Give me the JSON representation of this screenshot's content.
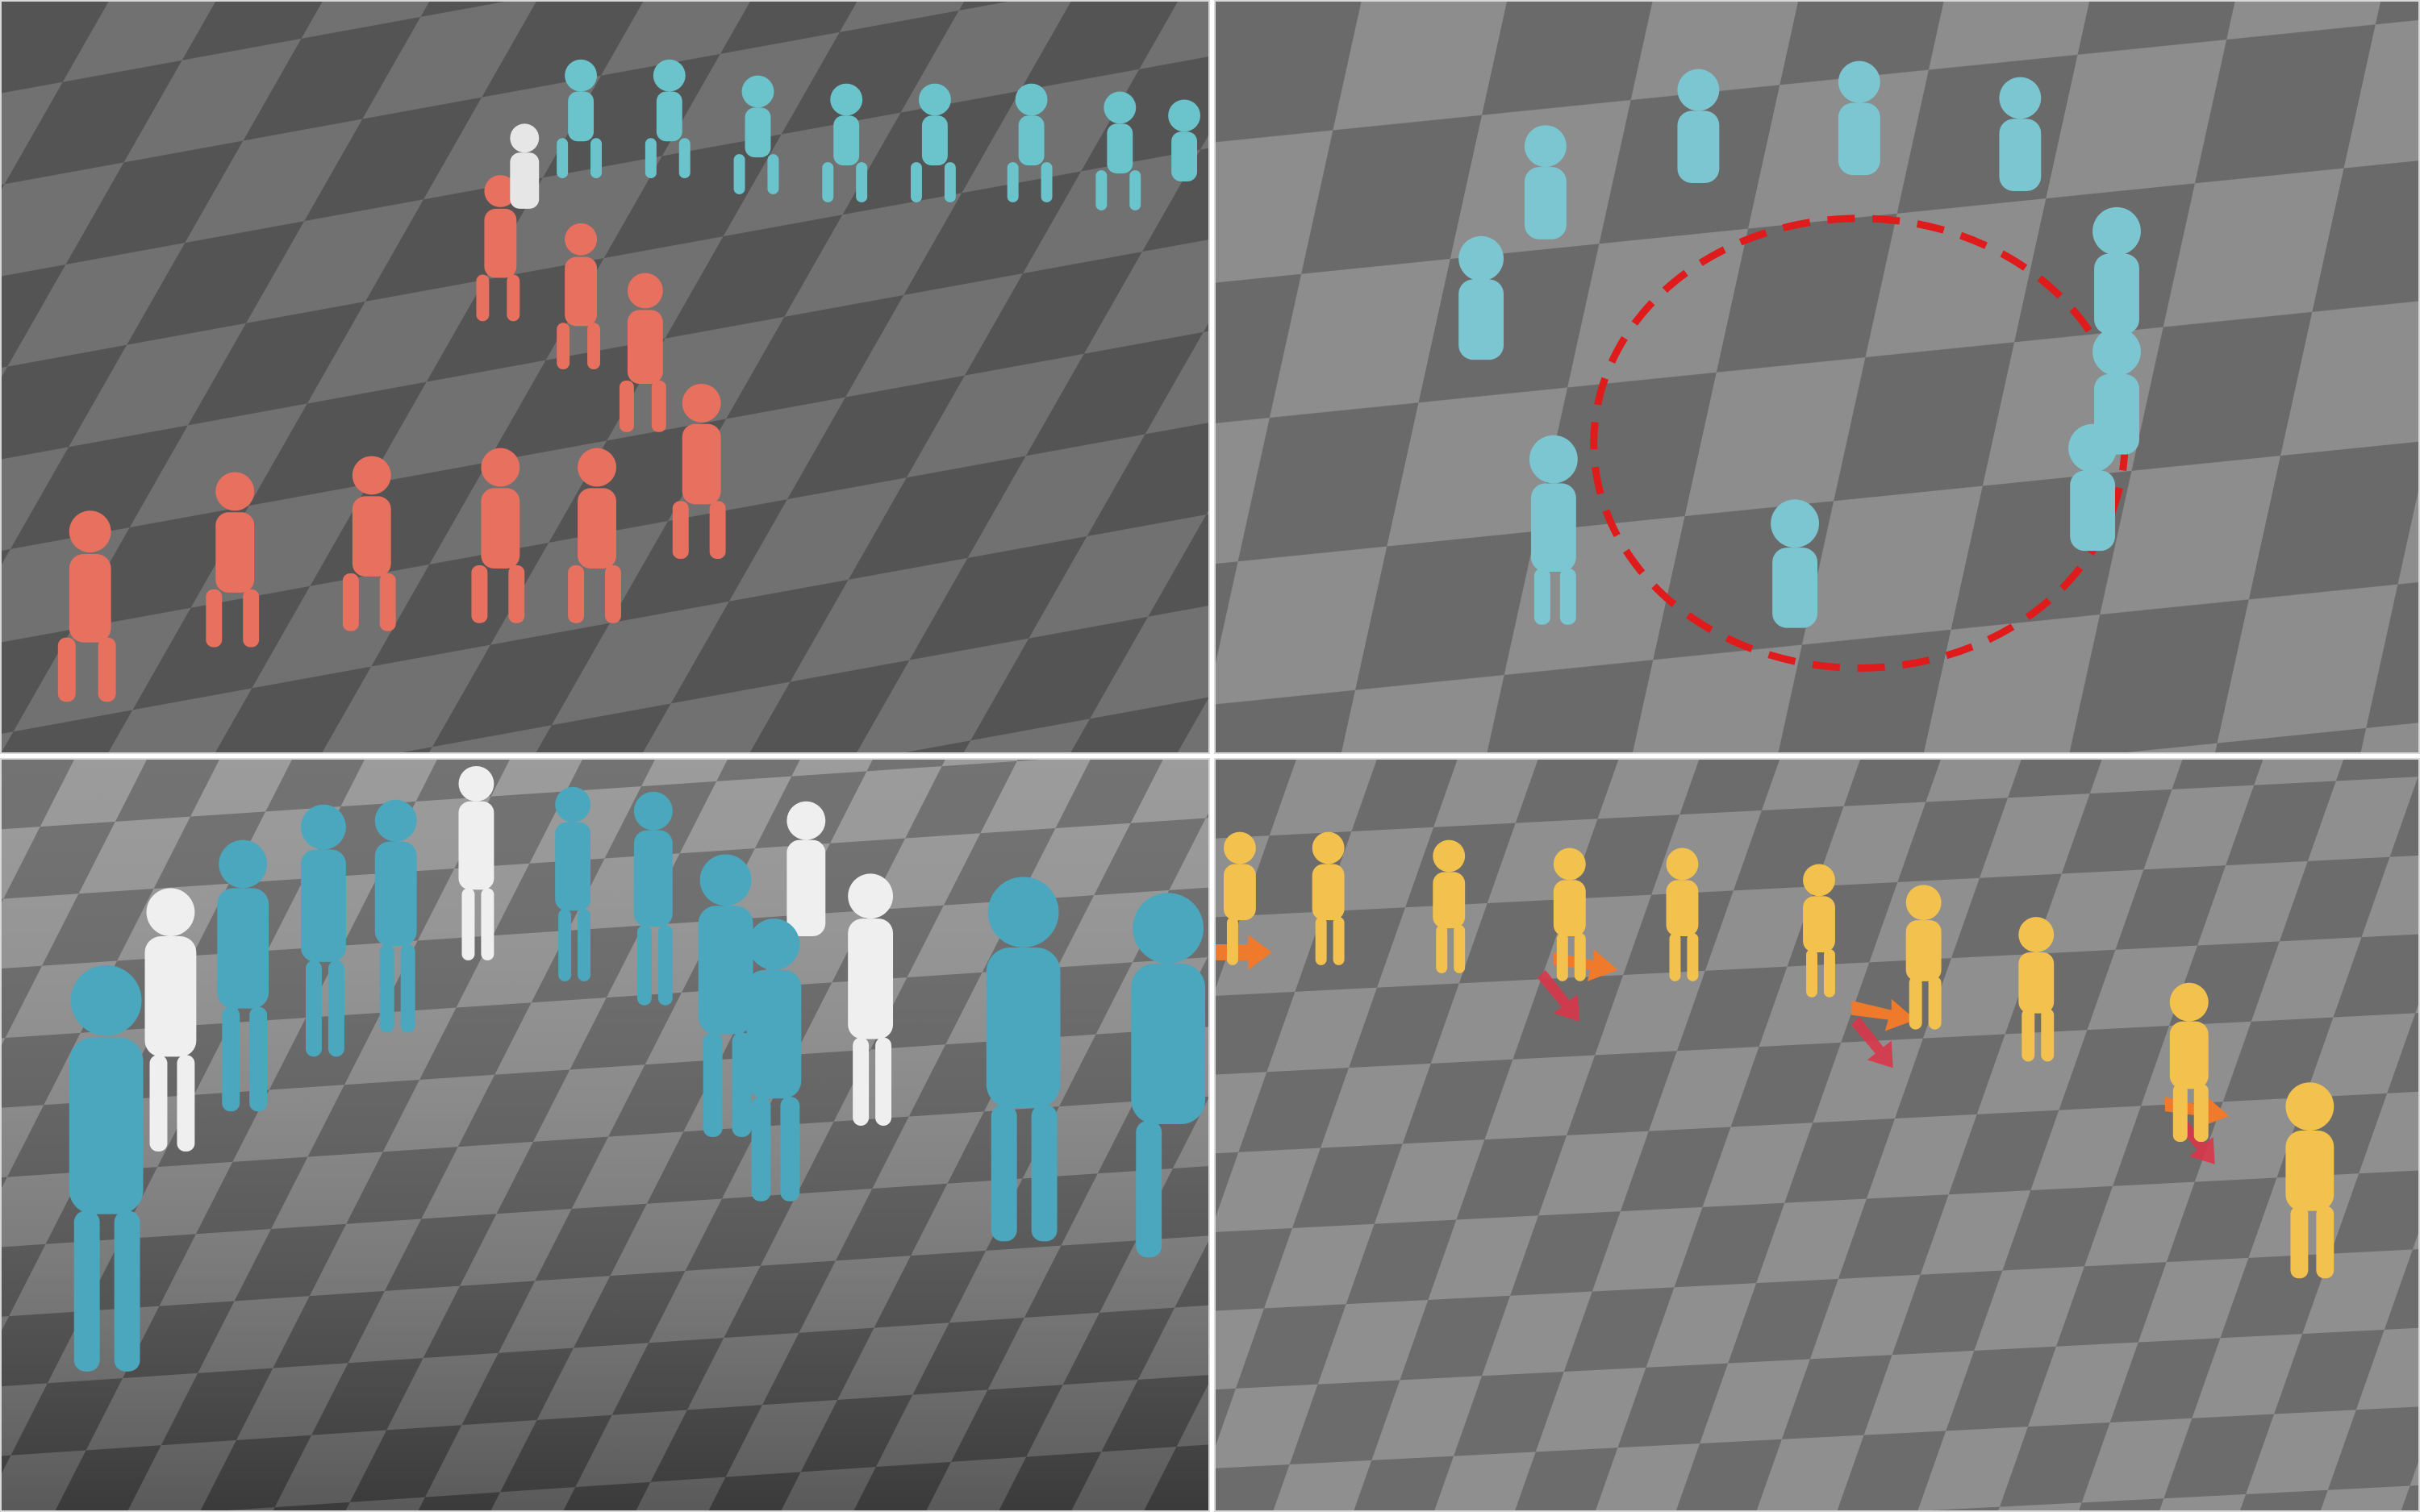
{
  "figure": {
    "panels": [
      {
        "name": "top-left",
        "subject": "red-and-cyan-character-sequences",
        "colors": {
          "primary": "#e8705e",
          "secondary": "#6bc3cc",
          "ghost": "#e6e6e6"
        }
      },
      {
        "name": "top-right",
        "subject": "cyan-characters-circling-dashed-path",
        "colors": {
          "primary": "#7cc6d2",
          "path": "#e01b1b"
        }
      },
      {
        "name": "bottom-left",
        "subject": "blue-characters-walking-with-ghosts",
        "colors": {
          "primary": "#4aa7bd",
          "ghost": "#efefef"
        }
      },
      {
        "name": "bottom-right",
        "subject": "yellow-runner-sequence-with-force-arrows",
        "colors": {
          "primary": "#f2c14e",
          "arrow": "#f07a2b"
        }
      }
    ],
    "floor": {
      "light": "#8a8a8a",
      "dark": "#5e5e5e"
    }
  }
}
